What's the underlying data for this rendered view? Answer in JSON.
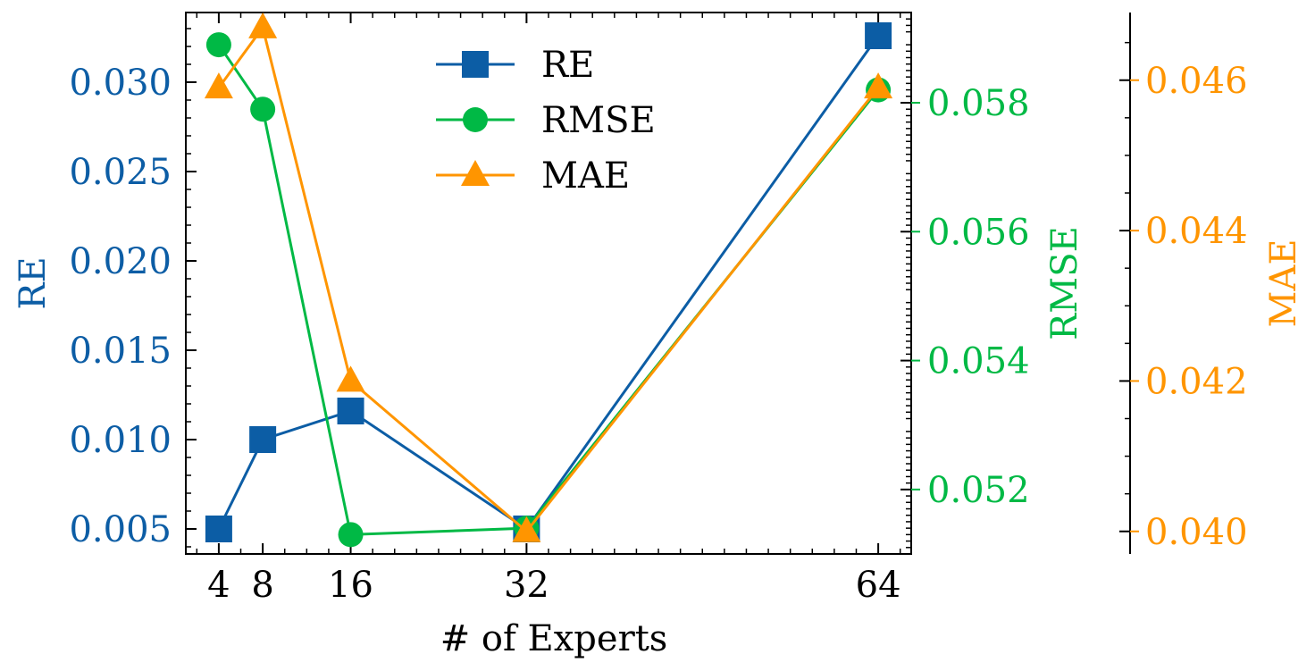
{
  "chart_data": {
    "type": "line",
    "xlabel": "# of Experts",
    "x": [
      4,
      8,
      16,
      32,
      64
    ],
    "xticks": [
      "4",
      "8",
      "16",
      "32",
      "64"
    ],
    "xlim": [
      1,
      67
    ],
    "series": [
      {
        "name": "RE",
        "axis": "left",
        "color": "#0C5DA5",
        "marker": "square",
        "values": [
          0.005,
          0.01,
          0.0116,
          0.005,
          0.0326
        ]
      },
      {
        "name": "RMSE",
        "axis": "right",
        "color": "#00B945",
        "marker": "circle",
        "values": [
          0.0589,
          0.0579,
          0.0513,
          0.0514,
          0.0582
        ]
      },
      {
        "name": "MAE",
        "axis": "right-offset",
        "color": "#FF9500",
        "marker": "triangle",
        "values": [
          0.0459,
          0.0467,
          0.042,
          0.04,
          0.0459
        ]
      }
    ],
    "axes": {
      "left": {
        "label": "RE",
        "color": "#0C5DA5",
        "ylim": [
          0.0036,
          0.0339
        ],
        "ticks": [
          0.005,
          0.01,
          0.015,
          0.02,
          0.025,
          0.03
        ],
        "tick_labels": [
          "0.005",
          "0.010",
          "0.015",
          "0.020",
          "0.025",
          "0.030"
        ]
      },
      "right": {
        "label": "RMSE",
        "color": "#00B945",
        "ylim": [
          0.051,
          0.0594
        ],
        "ticks": [
          0.052,
          0.054,
          0.056,
          0.058
        ],
        "tick_labels": [
          "0.052",
          "0.054",
          "0.056",
          "0.058"
        ]
      },
      "right_offset": {
        "label": "MAE",
        "color": "#FF9500",
        "ylim": [
          0.0397,
          0.0469
        ],
        "ticks": [
          0.04,
          0.042,
          0.044,
          0.046
        ],
        "tick_labels": [
          "0.040",
          "0.042",
          "0.044",
          "0.046"
        ]
      }
    },
    "legend": {
      "placement": "upper-center",
      "entries": [
        "RE",
        "RMSE",
        "MAE"
      ]
    },
    "grid": false
  }
}
